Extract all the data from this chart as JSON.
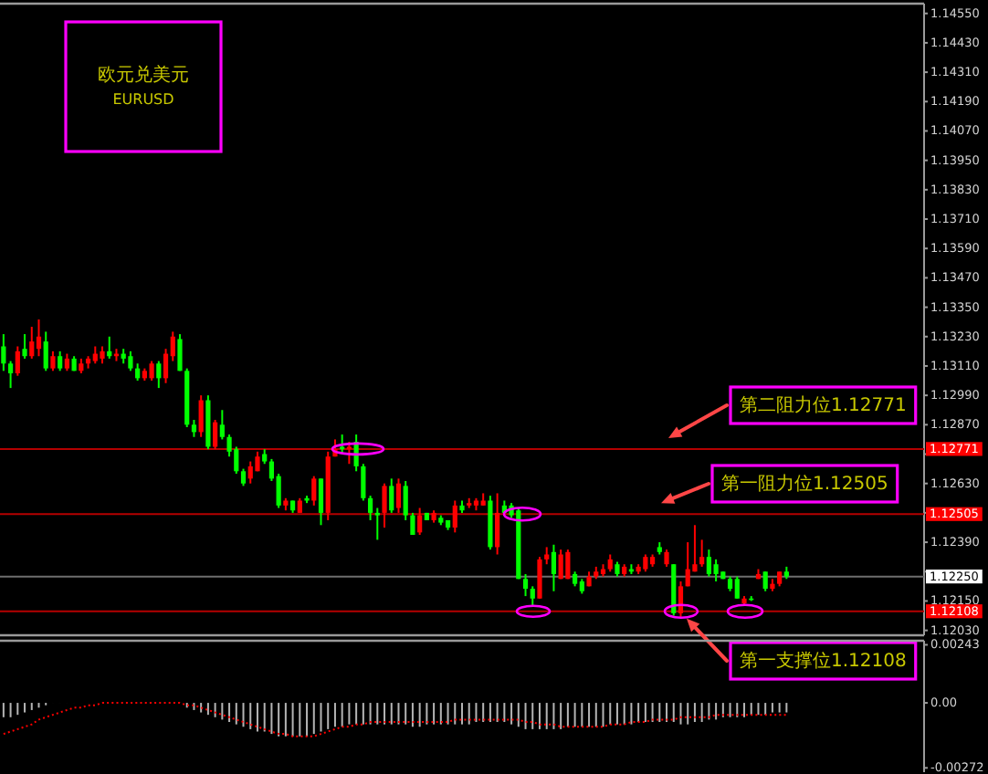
{
  "chart_data": [
    {
      "type": "candlestick",
      "title": "欧元兑美元",
      "subtitle": "EURUSD",
      "categories": [
        null,
        null,
        null,
        null,
        null,
        null,
        null,
        null,
        null,
        null,
        null,
        null,
        null,
        null,
        null,
        null,
        null,
        null,
        null,
        null,
        null,
        null,
        null,
        null,
        null,
        null,
        null,
        null,
        null,
        null,
        null,
        null,
        null,
        null,
        null,
        null,
        null,
        null,
        null,
        null,
        null,
        null,
        null,
        null,
        null,
        null,
        null,
        null,
        null,
        null,
        null,
        null,
        null,
        null,
        null,
        null,
        null,
        null,
        null,
        null,
        null,
        null,
        null,
        null,
        null,
        null,
        null,
        null,
        null,
        null,
        null,
        null,
        null,
        null,
        null,
        null,
        null,
        null,
        null,
        null,
        null,
        null,
        null,
        null,
        null,
        null,
        null,
        null,
        null,
        null,
        null,
        null,
        null,
        null,
        null,
        null,
        null,
        null,
        null,
        null,
        null,
        null,
        null,
        null,
        null,
        null,
        null,
        null,
        null,
        null,
        null,
        null,
        null,
        null,
        null,
        null,
        null,
        null,
        null,
        null,
        null,
        null,
        null,
        null,
        null,
        null,
        null,
        null,
        null,
        null,
        null
      ],
      "ohlc": [
        [
          1.1319,
          1.1324,
          1.1309,
          1.1312
        ],
        [
          1.1312,
          1.1313,
          1.1302,
          1.1308
        ],
        [
          1.1308,
          1.1319,
          1.1307,
          1.1317
        ],
        [
          1.1318,
          1.1324,
          1.1314,
          1.1315
        ],
        [
          1.1315,
          1.1327,
          1.1314,
          1.1321
        ],
        [
          1.1318,
          1.133,
          1.1315,
          1.1323
        ],
        [
          1.1321,
          1.1325,
          1.1309,
          1.131
        ],
        [
          1.131,
          1.1317,
          1.1309,
          1.1315
        ],
        [
          1.1315,
          1.1317,
          1.1309,
          1.131
        ],
        [
          1.131,
          1.1316,
          1.1309,
          1.1314
        ],
        [
          1.1314,
          1.1315,
          1.1309,
          1.1309
        ],
        [
          1.1309,
          1.1314,
          1.1308,
          1.1312
        ],
        [
          1.1312,
          1.1315,
          1.131,
          1.1314
        ],
        [
          1.1313,
          1.1319,
          1.1312,
          1.1316
        ],
        [
          1.1314,
          1.1319,
          1.1312,
          1.1317
        ],
        [
          1.1317,
          1.1323,
          1.1314,
          1.1315
        ],
        [
          1.1315,
          1.1318,
          1.1313,
          1.1316
        ],
        [
          1.1316,
          1.1318,
          1.1312,
          1.1314
        ],
        [
          1.1315,
          1.1317,
          1.1309,
          1.131
        ],
        [
          1.131,
          1.1312,
          1.1305,
          1.1306
        ],
        [
          1.1306,
          1.131,
          1.1305,
          1.1309
        ],
        [
          1.1306,
          1.1313,
          1.1305,
          1.1312
        ],
        [
          1.1312,
          1.1313,
          1.1302,
          1.1306
        ],
        [
          1.1306,
          1.1318,
          1.1304,
          1.1316
        ],
        [
          1.1315,
          1.1325,
          1.1313,
          1.1323
        ],
        [
          1.1322,
          1.1324,
          1.1309,
          1.1309
        ],
        [
          1.1309,
          1.131,
          1.1286,
          1.1287
        ],
        [
          1.1287,
          1.1289,
          1.1282,
          1.1284
        ],
        [
          1.1284,
          1.1299,
          1.1282,
          1.1297
        ],
        [
          1.1297,
          1.1299,
          1.1277,
          1.1278
        ],
        [
          1.1278,
          1.1289,
          1.1277,
          1.1288
        ],
        [
          1.1287,
          1.1293,
          1.1281,
          1.1282
        ],
        [
          1.1282,
          1.1283,
          1.1274,
          1.1276
        ],
        [
          1.1277,
          1.1278,
          1.1267,
          1.1268
        ],
        [
          1.1268,
          1.1269,
          1.1262,
          1.1263
        ],
        [
          1.1265,
          1.1272,
          1.1263,
          1.127
        ],
        [
          1.1268,
          1.1276,
          1.1268,
          1.1274
        ],
        [
          1.1275,
          1.1277,
          1.1271,
          1.1272
        ],
        [
          1.1272,
          1.1273,
          1.1264,
          1.1265
        ],
        [
          1.1266,
          1.1267,
          1.1253,
          1.1254
        ],
        [
          1.1254,
          1.1257,
          1.1252,
          1.1256
        ],
        [
          1.1256,
          1.1256,
          1.1251,
          1.1252
        ],
        [
          1.1251,
          1.1257,
          1.1251,
          1.1256
        ],
        [
          1.1257,
          1.1258,
          1.1255,
          1.1256
        ],
        [
          1.1256,
          1.1266,
          1.1254,
          1.1265
        ],
        [
          1.1265,
          1.1265,
          1.1246,
          1.1251
        ],
        [
          1.1251,
          1.1276,
          1.1248,
          1.1274
        ],
        [
          1.1274,
          1.1281,
          1.1274,
          1.1277
        ],
        [
          1.1278,
          1.1283,
          1.1275,
          1.1277
        ],
        [
          1.1277,
          1.128,
          1.1271,
          1.1278
        ],
        [
          1.128,
          1.1283,
          1.1268,
          1.127
        ],
        [
          1.127,
          1.1271,
          1.1256,
          1.1257
        ],
        [
          1.1257,
          1.1258,
          1.1248,
          1.1251
        ],
        [
          1.1251,
          1.1253,
          1.124,
          1.125
        ],
        [
          1.1251,
          1.1263,
          1.1245,
          1.1262
        ],
        [
          1.1262,
          1.1265,
          1.1251,
          1.1252
        ],
        [
          1.1253,
          1.1265,
          1.1251,
          1.1263
        ],
        [
          1.1262,
          1.1264,
          1.1248,
          1.125
        ],
        [
          1.125,
          1.1251,
          1.1242,
          1.1242
        ],
        [
          1.1243,
          1.1253,
          1.1242,
          1.125
        ],
        [
          1.1251,
          1.1251,
          1.1248,
          1.1248
        ],
        [
          1.1248,
          1.1252,
          1.1247,
          1.1251
        ],
        [
          1.1249,
          1.125,
          1.1246,
          1.1247
        ],
        [
          1.1248,
          1.1248,
          1.1244,
          1.1245
        ],
        [
          1.1245,
          1.1256,
          1.1243,
          1.1254
        ],
        [
          1.1254,
          1.1256,
          1.1251,
          1.1252
        ],
        [
          1.1254,
          1.1257,
          1.1253,
          1.1255
        ],
        [
          1.1254,
          1.1257,
          1.1252,
          1.1256
        ],
        [
          1.1254,
          1.1259,
          1.1254,
          1.1256
        ],
        [
          1.1256,
          1.1258,
          1.1236,
          1.1237
        ],
        [
          1.1237,
          1.1259,
          1.1234,
          1.1251
        ],
        [
          1.1254,
          1.1256,
          1.1251,
          1.1251
        ],
        [
          1.1254,
          1.1255,
          1.1249,
          1.125
        ],
        [
          1.1252,
          1.1253,
          1.1224,
          1.1224
        ],
        [
          1.1224,
          1.1226,
          1.1217,
          1.122
        ],
        [
          1.122,
          1.1221,
          1.1213,
          1.1216
        ],
        [
          1.1216,
          1.1233,
          1.1216,
          1.1232
        ],
        [
          1.1232,
          1.1237,
          1.123,
          1.1234
        ],
        [
          1.1235,
          1.1238,
          1.1219,
          1.1226
        ],
        [
          1.1224,
          1.1236,
          1.1224,
          1.1234
        ],
        [
          1.1224,
          1.1236,
          1.1224,
          1.1235
        ],
        [
          1.1226,
          1.1227,
          1.1221,
          1.1222
        ],
        [
          1.1223,
          1.1224,
          1.1218,
          1.1219
        ],
        [
          1.1221,
          1.1227,
          1.1221,
          1.1225
        ],
        [
          1.1225,
          1.1229,
          1.1224,
          1.1227
        ],
        [
          1.1226,
          1.123,
          1.1225,
          1.1228
        ],
        [
          1.1228,
          1.1234,
          1.1227,
          1.1232
        ],
        [
          1.123,
          1.1231,
          1.1225,
          1.1226
        ],
        [
          1.1226,
          1.123,
          1.1225,
          1.1229
        ],
        [
          1.1228,
          1.123,
          1.1226,
          1.1227
        ],
        [
          1.1227,
          1.123,
          1.1226,
          1.1229
        ],
        [
          1.1228,
          1.1234,
          1.1227,
          1.1233
        ],
        [
          1.123,
          1.1234,
          1.1229,
          1.1233
        ],
        [
          1.1237,
          1.1239,
          1.1234,
          1.1235
        ],
        [
          1.123,
          1.1236,
          1.1229,
          1.1235
        ],
        [
          1.123,
          1.123,
          1.1209,
          1.121
        ],
        [
          1.121,
          1.1223,
          1.1208,
          1.1221
        ],
        [
          1.1221,
          1.1239,
          1.1221,
          1.1228
        ],
        [
          1.1227,
          1.1246,
          1.1227,
          1.123
        ],
        [
          1.123,
          1.124,
          1.1229,
          1.1233
        ],
        [
          1.1233,
          1.1236,
          1.1225,
          1.1226
        ],
        [
          1.123,
          1.1232,
          1.1223,
          1.1226
        ],
        [
          1.1227,
          1.1227,
          1.1224,
          1.1224
        ],
        [
          1.1224,
          1.1225,
          1.1219,
          1.122
        ],
        [
          1.1224,
          1.1225,
          1.1216,
          1.1216
        ],
        [
          1.1214,
          1.1217,
          1.1213,
          1.1216
        ],
        [
          1.1216,
          1.1217,
          1.1215,
          1.1216
        ],
        [
          1.1224,
          1.1228,
          1.1224,
          1.1226
        ],
        [
          1.1227,
          1.1227,
          1.1219,
          1.122
        ],
        [
          1.122,
          1.1224,
          1.1219,
          1.1222
        ],
        [
          1.1222,
          1.1227,
          1.1221,
          1.1227
        ],
        [
          1.1227,
          1.1229,
          1.1224,
          1.1225
        ],
        null,
        null,
        null,
        null,
        null,
        null,
        null,
        null,
        null,
        null,
        null,
        null,
        null,
        null,
        null,
        null,
        null,
        null,
        null
      ],
      "colors": [
        "#00ff00",
        "#00ff00",
        "#ff0000",
        "#00ff00",
        "#ff0000",
        "#ff0000",
        "#00ff00",
        "#ff0000",
        "#00ff00",
        "#ff0000",
        "#00ff00",
        "#ff0000",
        "#ff0000",
        "#ff0000",
        "#ff0000",
        "#00ff00",
        "#ff0000",
        "#00ff00",
        "#00ff00",
        "#00ff00",
        "#ff0000",
        "#ff0000",
        "#00ff00",
        "#ff0000",
        "#ff0000",
        "#00ff00",
        "#00ff00",
        "#00ff00",
        "#ff0000",
        "#00ff00",
        "#ff0000",
        "#00ff00",
        "#00ff00",
        "#00ff00",
        "#00ff00",
        "#ff0000",
        "#ff0000",
        "#00ff00",
        "#00ff00",
        "#00ff00",
        "#ff0000",
        "#00ff00",
        "#ff0000",
        "#00ff00",
        "#ff0000",
        "#00ff00",
        "#ff0000",
        "#ff0000",
        "#00ff00",
        "#ff0000",
        "#00ff00",
        "#00ff00",
        "#00ff00",
        "#00ff00",
        "#ff0000",
        "#00ff00",
        "#ff0000",
        "#00ff00",
        "#00ff00",
        "#ff0000",
        "#00ff00",
        "#ff0000",
        "#00ff00",
        "#00ff00",
        "#ff0000",
        "#00ff00",
        "#ff0000",
        "#ff0000",
        "#ff0000",
        "#00ff00",
        "#ff0000",
        "#00ff00",
        "#00ff00",
        "#00ff00",
        "#00ff00",
        "#00ff00",
        "#ff0000",
        "#ff0000",
        "#00ff00",
        "#ff0000",
        "#ff0000",
        "#00ff00",
        "#00ff00",
        "#ff0000",
        "#ff0000",
        "#ff0000",
        "#ff0000",
        "#00ff00",
        "#ff0000",
        "#00ff00",
        "#ff0000",
        "#ff0000",
        "#ff0000",
        "#00ff00",
        "#ff0000",
        "#00ff00",
        "#ff0000",
        "#ff0000",
        "#ff0000",
        "#ff0000",
        "#00ff00",
        "#00ff00",
        "#00ff00",
        "#00ff00",
        "#00ff00",
        "#ff0000",
        "#00ff00",
        "#ff0000",
        "#00ff00",
        "#ff0000",
        "#ff0000",
        "#00ff00",
        null,
        null,
        null,
        null,
        null,
        null,
        null,
        null,
        null,
        null,
        null,
        null,
        null,
        null,
        null,
        null,
        null,
        null,
        null
      ],
      "ylim": [
        1.1201,
        1.1459
      ],
      "yticks": [
        {
          "value": 1.1455,
          "label": "1.14550"
        },
        {
          "value": 1.1443,
          "label": "1.14430"
        },
        {
          "value": 1.1431,
          "label": "1.14310"
        },
        {
          "value": 1.1419,
          "label": "1.14190"
        },
        {
          "value": 1.1407,
          "label": "1.14070"
        },
        {
          "value": 1.1395,
          "label": "1.13950"
        },
        {
          "value": 1.1383,
          "label": "1.13830"
        },
        {
          "value": 1.1371,
          "label": "1.13710"
        },
        {
          "value": 1.1359,
          "label": "1.13590"
        },
        {
          "value": 1.1347,
          "label": "1.13470"
        },
        {
          "value": 1.1335,
          "label": "1.13350"
        },
        {
          "value": 1.1323,
          "label": "1.13230"
        },
        {
          "value": 1.1311,
          "label": "1.13110"
        },
        {
          "value": 1.1299,
          "label": "1.12990"
        },
        {
          "value": 1.1287,
          "label": "1.12870"
        },
        {
          "value": 1.1275,
          "label": null
        },
        {
          "value": 1.1263,
          "label": "1.12630"
        },
        {
          "value": 1.1251,
          "label": null
        },
        {
          "value": 1.1239,
          "label": "1.12390"
        },
        {
          "value": 1.1227,
          "label": null
        },
        {
          "value": 1.1215,
          "label": "1.12150"
        },
        {
          "value": 1.1203,
          "label": "1.12030"
        }
      ],
      "ref_lines": [
        {
          "axis": "y",
          "value": 1.12771,
          "label": "1.12771",
          "color": "#b40000"
        },
        {
          "axis": "y",
          "value": 1.12505,
          "label": "1.12505",
          "color": "#b40000"
        },
        {
          "axis": "y",
          "value": 1.12108,
          "label": "1.12108",
          "color": "#b40000"
        },
        {
          "axis": "y",
          "value": 1.1225,
          "label": "1.12250",
          "color": "#6e6e6e"
        }
      ],
      "annotations": [
        {
          "text": "第二阻力位1.12771",
          "y": 1.12771
        },
        {
          "text": "第一阻力位1.12505",
          "y": 1.12505
        },
        {
          "text": "第一支撑位1.12108",
          "y": 1.12108
        }
      ]
    },
    {
      "type": "bar",
      "categories": [
        null,
        null,
        null,
        null,
        null,
        null,
        null,
        null,
        null,
        null,
        null,
        null,
        null,
        null,
        null,
        null,
        null,
        null,
        null,
        null,
        null,
        null,
        null,
        null,
        null,
        null,
        null,
        null,
        null,
        null,
        null,
        null,
        null,
        null,
        null,
        null,
        null,
        null,
        null,
        null,
        null,
        null,
        null,
        null,
        null,
        null,
        null,
        null,
        null,
        null,
        null,
        null,
        null,
        null,
        null,
        null,
        null,
        null,
        null,
        null,
        null,
        null,
        null,
        null,
        null,
        null,
        null,
        null,
        null,
        null,
        null,
        null,
        null,
        null,
        null,
        null,
        null,
        null,
        null,
        null,
        null,
        null,
        null,
        null,
        null,
        null,
        null,
        null,
        null,
        null,
        null,
        null,
        null,
        null,
        null,
        null,
        null,
        null,
        null,
        null,
        null,
        null,
        null,
        null,
        null,
        null,
        null,
        null,
        null,
        null,
        null,
        null,
        null,
        null,
        null,
        null,
        null,
        null,
        null,
        null,
        null,
        null,
        null,
        null,
        null,
        null,
        null,
        null,
        null,
        null,
        null
      ],
      "series": [
        {
          "type": "bar",
          "color": "#b4b4b4",
          "values": [
            -0.0006,
            -0.0006,
            -0.0005,
            -0.0004,
            -0.0003,
            -0.0002,
            -0.0001,
            0,
            0,
            0,
            0,
            0,
            0,
            0,
            0,
            0,
            0,
            0,
            0,
            0,
            0,
            0,
            0,
            0,
            0,
            0,
            -0.0002,
            -0.0003,
            -0.0004,
            -0.0005,
            -0.0006,
            -0.0007,
            -0.0008,
            -0.0009,
            -0.001,
            -0.0011,
            -0.0012,
            -0.0012,
            -0.0013,
            -0.0014,
            -0.0014,
            -0.0014,
            -0.0014,
            -0.0014,
            -0.0013,
            -0.0012,
            -0.0011,
            -0.001,
            -0.001,
            -0.0009,
            -0.0009,
            -0.0009,
            -0.0009,
            -0.0009,
            -0.0009,
            -0.0009,
            -0.0009,
            -0.0009,
            -0.001,
            -0.001,
            -0.0009,
            -0.0009,
            -0.0009,
            -0.0009,
            -0.0009,
            -0.0009,
            -0.0009,
            -0.0008,
            -0.0008,
            -0.0008,
            -0.0008,
            -0.0008,
            -0.0009,
            -0.001,
            -0.0011,
            -0.0011,
            -0.0011,
            -0.0011,
            -0.0011,
            -0.0011,
            -0.001,
            -0.001,
            -0.001,
            -0.001,
            -0.001,
            -0.001,
            -0.0009,
            -0.0009,
            -0.0009,
            -0.0009,
            -0.0008,
            -0.0008,
            -0.0008,
            -0.0008,
            -0.0008,
            -0.0008,
            -0.0009,
            -0.0009,
            -0.0008,
            -0.0008,
            -0.0007,
            -0.0007,
            -0.0006,
            -0.0006,
            -0.0006,
            -0.0006,
            -0.0005,
            -0.0005,
            -0.0005,
            -0.0004,
            -0.0004,
            -0.0004,
            null,
            null,
            null,
            null,
            null,
            null,
            null,
            null,
            null,
            null,
            null,
            null,
            null,
            null,
            null,
            null,
            null,
            null,
            null
          ]
        },
        {
          "type": "line",
          "color": "#ff0000",
          "line_style": "dotted",
          "values": [
            -0.0013,
            -0.0012,
            -0.0011,
            -0.001,
            -0.0009,
            -0.0007,
            -0.0006,
            -0.0005,
            -0.0004,
            -0.0003,
            -0.0002,
            -0.0002,
            -0.0001,
            -0.0001,
            0,
            0,
            0,
            0,
            0,
            0,
            0,
            0,
            0,
            0,
            0,
            0,
            -0.0001,
            -0.0001,
            -0.0002,
            -0.0003,
            -0.0004,
            -0.0005,
            -0.0006,
            -0.0007,
            -0.0008,
            -0.0009,
            -0.001,
            -0.0011,
            -0.0012,
            -0.0013,
            -0.0013,
            -0.0014,
            -0.0014,
            -0.0014,
            -0.0014,
            -0.0013,
            -0.0012,
            -0.0011,
            -0.001,
            -0.001,
            -0.0009,
            -0.0009,
            -0.0008,
            -0.0008,
            -0.0008,
            -0.0008,
            -0.0008,
            -0.0008,
            -0.0008,
            -0.0008,
            -0.0008,
            -0.0008,
            -0.0008,
            -0.0008,
            -0.0007,
            -0.0007,
            -0.0007,
            -0.0007,
            -0.0007,
            -0.0007,
            -0.0007,
            -0.0007,
            -0.0007,
            -0.0007,
            -0.0008,
            -0.0008,
            -0.0009,
            -0.0009,
            -0.0009,
            -0.001,
            -0.001,
            -0.001,
            -0.001,
            -0.001,
            -0.001,
            -0.001,
            -0.0009,
            -0.0009,
            -0.0009,
            -0.0008,
            -0.0008,
            -0.0008,
            -0.0007,
            -0.0007,
            -0.0007,
            -0.0007,
            -0.0006,
            -0.0006,
            -0.0006,
            -0.0006,
            -0.0006,
            -0.0005,
            -0.0005,
            -0.0005,
            -0.0005,
            -0.0005,
            -0.0005,
            -0.0005,
            -0.0005,
            -0.0005,
            -0.0005,
            -0.0005,
            null,
            null,
            null,
            null,
            null,
            null,
            null,
            null,
            null,
            null,
            null,
            null,
            null,
            null,
            null,
            null,
            null,
            null,
            null
          ]
        }
      ],
      "ylim": [
        -0.0029,
        0.0026
      ],
      "yticks": [
        {
          "value": 0.00243,
          "label": "0.00243"
        },
        {
          "value": 0,
          "label": "0.00"
        },
        {
          "value": -0.00272,
          "label": "-0.00272"
        }
      ]
    }
  ]
}
